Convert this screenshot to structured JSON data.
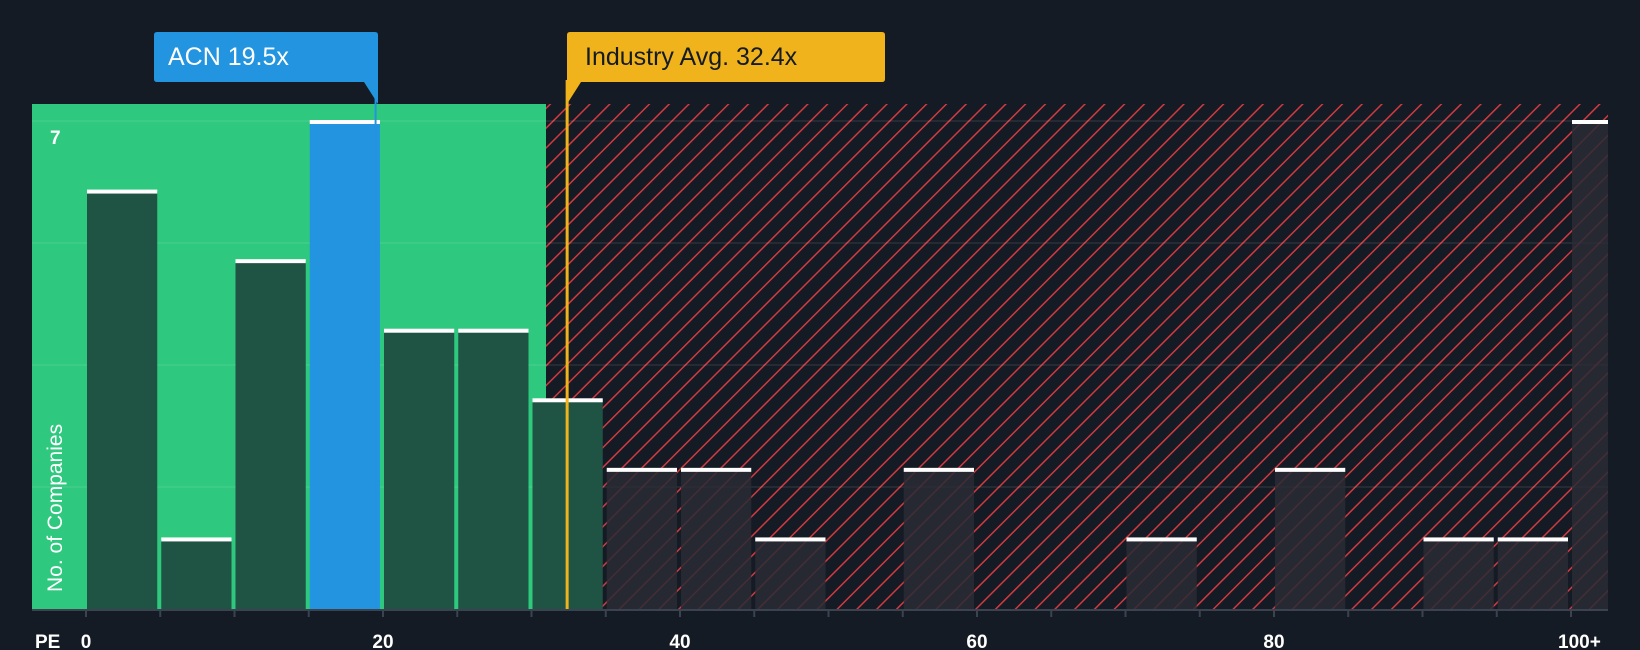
{
  "chart_data": {
    "type": "bar",
    "xlabel": "PE",
    "ylabel": "No. of Companies",
    "x_ticks": [
      "0",
      "20",
      "40",
      "60",
      "80",
      "100+"
    ],
    "x_range": [
      0,
      102.5
    ],
    "y_range": [
      0,
      7
    ],
    "y_tick_label": "7",
    "bin_width": 5,
    "bars": [
      {
        "x": 0,
        "value": 6
      },
      {
        "x": 5,
        "value": 1
      },
      {
        "x": 10,
        "value": 5
      },
      {
        "x": 15,
        "value": 7
      },
      {
        "x": 20,
        "value": 4
      },
      {
        "x": 25,
        "value": 4
      },
      {
        "x": 30,
        "value": 3
      },
      {
        "x": 35,
        "value": 2
      },
      {
        "x": 40,
        "value": 2
      },
      {
        "x": 45,
        "value": 1
      },
      {
        "x": 50,
        "value": 0
      },
      {
        "x": 55,
        "value": 2
      },
      {
        "x": 60,
        "value": 0
      },
      {
        "x": 65,
        "value": 0
      },
      {
        "x": 70,
        "value": 1
      },
      {
        "x": 75,
        "value": 0
      },
      {
        "x": 80,
        "value": 2
      },
      {
        "x": 85,
        "value": 0
      },
      {
        "x": 90,
        "value": 1
      },
      {
        "x": 95,
        "value": 1
      },
      {
        "x": 100,
        "value": 7
      }
    ],
    "company": {
      "label": "ACN 19.5x",
      "value": 19.5,
      "color": "#2394df"
    },
    "industry": {
      "label": "Industry Avg. 32.4x",
      "value": 32.4,
      "color": "#f0b31b"
    },
    "colors": {
      "background": "#151b24",
      "undervalued_zone": "#2ec97e",
      "overvalued_zone_hatch": "#d0393f",
      "bar_in_green": "#1f5444",
      "bar_in_red": "#2a2b35",
      "bar_cap": "#ffffff"
    }
  }
}
